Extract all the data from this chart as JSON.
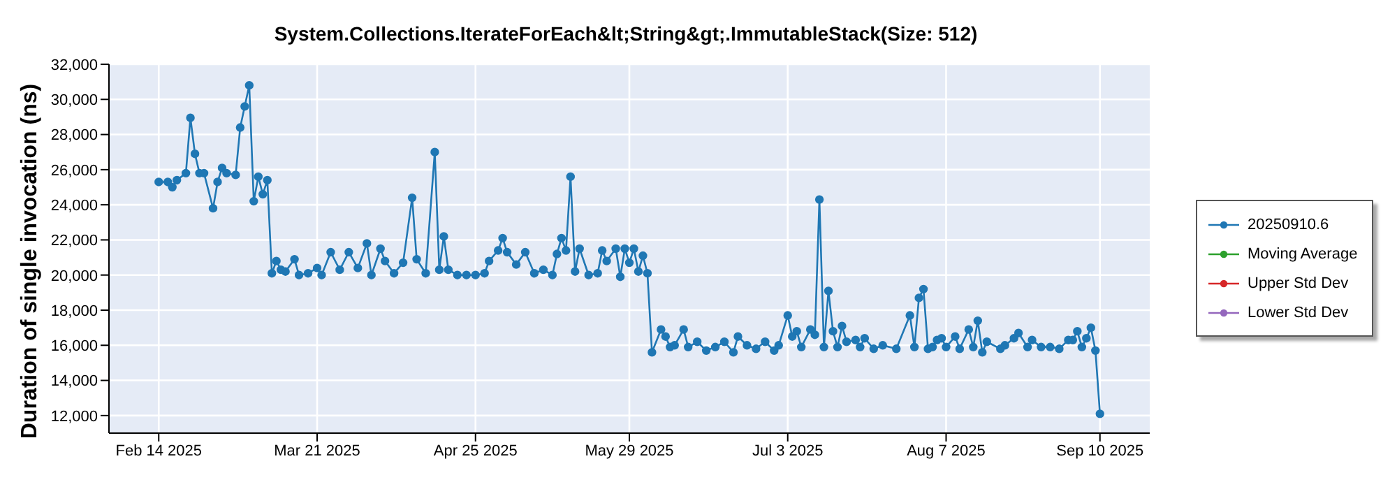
{
  "chart_data": {
    "type": "line",
    "title": "System.Collections.IterateForEach&lt;String&gt;.ImmutableStack(Size: 512)",
    "ylabel": "Duration of single invocation (ns)",
    "x": [
      "2025-02-14",
      "2025-02-16",
      "2025-02-17",
      "2025-02-18",
      "2025-02-20",
      "2025-02-21",
      "2025-02-22",
      "2025-02-23",
      "2025-02-24",
      "2025-02-26",
      "2025-02-27",
      "2025-02-28",
      "2025-03-01",
      "2025-03-03",
      "2025-03-04",
      "2025-03-05",
      "2025-03-06",
      "2025-03-07",
      "2025-03-08",
      "2025-03-09",
      "2025-03-10",
      "2025-03-11",
      "2025-03-12",
      "2025-03-13",
      "2025-03-14",
      "2025-03-16",
      "2025-03-17",
      "2025-03-19",
      "2025-03-21",
      "2025-03-22",
      "2025-03-24",
      "2025-03-26",
      "2025-03-28",
      "2025-03-30",
      "2025-04-01",
      "2025-04-02",
      "2025-04-04",
      "2025-04-05",
      "2025-04-07",
      "2025-04-09",
      "2025-04-11",
      "2025-04-12",
      "2025-04-14",
      "2025-04-16",
      "2025-04-17",
      "2025-04-18",
      "2025-04-19",
      "2025-04-21",
      "2025-04-23",
      "2025-04-25",
      "2025-04-27",
      "2025-04-28",
      "2025-04-30",
      "2025-05-01",
      "2025-05-02",
      "2025-05-04",
      "2025-05-06",
      "2025-05-08",
      "2025-05-10",
      "2025-05-12",
      "2025-05-13",
      "2025-05-14",
      "2025-05-15",
      "2025-05-16",
      "2025-05-17",
      "2025-05-18",
      "2025-05-20",
      "2025-05-22",
      "2025-05-23",
      "2025-05-24",
      "2025-05-26",
      "2025-05-27",
      "2025-05-28",
      "2025-05-29",
      "2025-05-30",
      "2025-05-31",
      "2025-06-01",
      "2025-06-02",
      "2025-06-03",
      "2025-06-05",
      "2025-06-06",
      "2025-06-07",
      "2025-06-08",
      "2025-06-10",
      "2025-06-11",
      "2025-06-13",
      "2025-06-15",
      "2025-06-17",
      "2025-06-19",
      "2025-06-21",
      "2025-06-22",
      "2025-06-24",
      "2025-06-26",
      "2025-06-28",
      "2025-06-30",
      "2025-07-01",
      "2025-07-03",
      "2025-07-04",
      "2025-07-05",
      "2025-07-06",
      "2025-07-08",
      "2025-07-09",
      "2025-07-10",
      "2025-07-11",
      "2025-07-12",
      "2025-07-13",
      "2025-07-14",
      "2025-07-15",
      "2025-07-16",
      "2025-07-18",
      "2025-07-19",
      "2025-07-20",
      "2025-07-22",
      "2025-07-24",
      "2025-07-27",
      "2025-07-30",
      "2025-07-31",
      "2025-08-01",
      "2025-08-02",
      "2025-08-03",
      "2025-08-04",
      "2025-08-05",
      "2025-08-06",
      "2025-08-07",
      "2025-08-09",
      "2025-08-10",
      "2025-08-12",
      "2025-08-13",
      "2025-08-14",
      "2025-08-15",
      "2025-08-16",
      "2025-08-19",
      "2025-08-20",
      "2025-08-22",
      "2025-08-23",
      "2025-08-25",
      "2025-08-26",
      "2025-08-28",
      "2025-08-30",
      "2025-09-01",
      "2025-09-03",
      "2025-09-04",
      "2025-09-05",
      "2025-09-06",
      "2025-09-07",
      "2025-09-08",
      "2025-09-09",
      "2025-09-10"
    ],
    "series": [
      {
        "name": "20250910.6",
        "color": "#1f77b4",
        "values": [
          25300,
          25300,
          25000,
          25400,
          25800,
          28950,
          26900,
          25800,
          25800,
          23800,
          25300,
          26100,
          25800,
          25700,
          28400,
          29600,
          30800,
          24200,
          25600,
          24600,
          25400,
          20100,
          20800,
          20300,
          20200,
          20900,
          20000,
          20100,
          20400,
          20000,
          21300,
          20300,
          21300,
          20400,
          21800,
          20000,
          21500,
          20800,
          20100,
          20700,
          24400,
          20900,
          20100,
          27000,
          20300,
          22200,
          20300,
          20000,
          20000,
          20000,
          20100,
          20800,
          21400,
          22100,
          21300,
          20600,
          21300,
          20100,
          20300,
          20000,
          21200,
          22100,
          21400,
          25600,
          20200,
          21500,
          20000,
          20100,
          21400,
          20800,
          21500,
          19900,
          21500,
          20700,
          21500,
          20200,
          21100,
          20100,
          15600,
          16900,
          16500,
          15900,
          16000,
          16900,
          15900,
          16200,
          15700,
          15900,
          16200,
          15600,
          16500,
          16000,
          15800,
          16200,
          15700,
          16000,
          17700,
          16500,
          16800,
          15900,
          16900,
          16600,
          24300,
          15900,
          19100,
          16800,
          15900,
          17100,
          16200,
          16300,
          15900,
          16400,
          15800,
          16000,
          15800,
          17700,
          15900,
          18700,
          19200,
          15800,
          15900,
          16300,
          16400,
          15900,
          16500,
          15800,
          16900,
          15900,
          17400,
          15600,
          16200,
          15800,
          16000,
          16400,
          16700,
          15900,
          16300,
          15900,
          15900,
          15800,
          16300,
          16300,
          16800,
          15900,
          16400,
          17000,
          15700,
          12100
        ]
      },
      {
        "name": "Moving Average",
        "color": "#2ca02c",
        "values": [
          null,
          null,
          null,
          null,
          null,
          null,
          null,
          null,
          null,
          null,
          null,
          null,
          null,
          null,
          null,
          null,
          null,
          null,
          null,
          null,
          null,
          null,
          null,
          null,
          null,
          null,
          null,
          null,
          null,
          null,
          null,
          null,
          null,
          null,
          null,
          null,
          null,
          null,
          null,
          null,
          null,
          null,
          null,
          null,
          null,
          null,
          null,
          null,
          null,
          null,
          null,
          null,
          null,
          null,
          null,
          null,
          null,
          null,
          null,
          null,
          null,
          null,
          null,
          null,
          null,
          null,
          null,
          null,
          null,
          null,
          null,
          null,
          null,
          null,
          null,
          null,
          null,
          null,
          null,
          null,
          null,
          null,
          null,
          null,
          null,
          null,
          null,
          null,
          null,
          null,
          null,
          null,
          null,
          null,
          null,
          null,
          null,
          null,
          null,
          null,
          null,
          null,
          null,
          null,
          null,
          null,
          null,
          null,
          null,
          null,
          null,
          null,
          null,
          null,
          null,
          null,
          null,
          null,
          null,
          null,
          null,
          null,
          null,
          null,
          null,
          null,
          null,
          null,
          null,
          null,
          null,
          null,
          null,
          null,
          null,
          null,
          null,
          null,
          null,
          null,
          null,
          null,
          null,
          null,
          null,
          null,
          null,
          null
        ]
      },
      {
        "name": "Upper Std Dev",
        "color": "#d62728",
        "values": [
          null,
          null,
          null,
          null,
          null,
          null,
          null,
          null,
          null,
          null,
          null,
          null,
          null,
          null,
          null,
          null,
          null,
          null,
          null,
          null,
          null,
          null,
          null,
          null,
          null,
          null,
          null,
          null,
          null,
          null,
          null,
          null,
          null,
          null,
          null,
          null,
          null,
          null,
          null,
          null,
          null,
          null,
          null,
          null,
          null,
          null,
          null,
          null,
          null,
          null,
          null,
          null,
          null,
          null,
          null,
          null,
          null,
          null,
          null,
          null,
          null,
          null,
          null,
          null,
          null,
          null,
          null,
          null,
          null,
          null,
          null,
          null,
          null,
          null,
          null,
          null,
          null,
          null,
          null,
          null,
          null,
          null,
          null,
          null,
          null,
          null,
          null,
          null,
          null,
          null,
          null,
          null,
          null,
          null,
          null,
          null,
          null,
          null,
          null,
          null,
          null,
          null,
          null,
          null,
          null,
          null,
          null,
          null,
          null,
          null,
          null,
          null,
          null,
          null,
          null,
          null,
          null,
          null,
          null,
          null,
          null,
          null,
          null,
          null,
          null,
          null,
          null,
          null,
          null,
          null,
          null,
          null,
          null,
          null,
          null,
          null,
          null,
          null,
          null,
          null,
          null,
          null,
          null,
          null,
          null,
          null,
          null,
          null
        ]
      },
      {
        "name": "Lower Std Dev",
        "color": "#9467bd",
        "values": [
          null,
          null,
          null,
          null,
          null,
          null,
          null,
          null,
          null,
          null,
          null,
          null,
          null,
          null,
          null,
          null,
          null,
          null,
          null,
          null,
          null,
          null,
          null,
          null,
          null,
          null,
          null,
          null,
          null,
          null,
          null,
          null,
          null,
          null,
          null,
          null,
          null,
          null,
          null,
          null,
          null,
          null,
          null,
          null,
          null,
          null,
          null,
          null,
          null,
          null,
          null,
          null,
          null,
          null,
          null,
          null,
          null,
          null,
          null,
          null,
          null,
          null,
          null,
          null,
          null,
          null,
          null,
          null,
          null,
          null,
          null,
          null,
          null,
          null,
          null,
          null,
          null,
          null,
          null,
          null,
          null,
          null,
          null,
          null,
          null,
          null,
          null,
          null,
          null,
          null,
          null,
          null,
          null,
          null,
          null,
          null,
          null,
          null,
          null,
          null,
          null,
          null,
          null,
          null,
          null,
          null,
          null,
          null,
          null,
          null,
          null,
          null,
          null,
          null,
          null,
          null,
          null,
          null,
          null,
          null,
          null,
          null,
          null,
          null,
          null,
          null,
          null,
          null,
          null,
          null,
          null,
          null,
          null,
          null,
          null,
          null,
          null,
          null,
          null,
          null,
          null,
          null,
          null,
          null,
          null,
          null,
          null,
          null
        ]
      }
    ],
    "xlim": [
      "2025-02-03",
      "2025-09-21"
    ],
    "xticks": [
      {
        "value": "2025-02-14",
        "label": "Feb 14 2025"
      },
      {
        "value": "2025-03-21",
        "label": "Mar 21 2025"
      },
      {
        "value": "2025-04-25",
        "label": "Apr 25 2025"
      },
      {
        "value": "2025-05-29",
        "label": "May 29 2025"
      },
      {
        "value": "2025-07-03",
        "label": "Jul 3 2025"
      },
      {
        "value": "2025-08-07",
        "label": "Aug 7 2025"
      },
      {
        "value": "2025-09-10",
        "label": "Sep 10 2025"
      }
    ],
    "ylim": [
      11000,
      32000
    ],
    "yticks": [
      {
        "value": 12000,
        "label": "12,000"
      },
      {
        "value": 14000,
        "label": "14,000"
      },
      {
        "value": 16000,
        "label": "16,000"
      },
      {
        "value": 18000,
        "label": "18,000"
      },
      {
        "value": 20000,
        "label": "20,000"
      },
      {
        "value": 22000,
        "label": "22,000"
      },
      {
        "value": 24000,
        "label": "24,000"
      },
      {
        "value": 26000,
        "label": "26,000"
      },
      {
        "value": 28000,
        "label": "28,000"
      },
      {
        "value": 30000,
        "label": "30,000"
      },
      {
        "value": 32000,
        "label": "32,000"
      }
    ],
    "grid": true,
    "legend": "right",
    "marker": "circle",
    "line_style": "solid"
  }
}
